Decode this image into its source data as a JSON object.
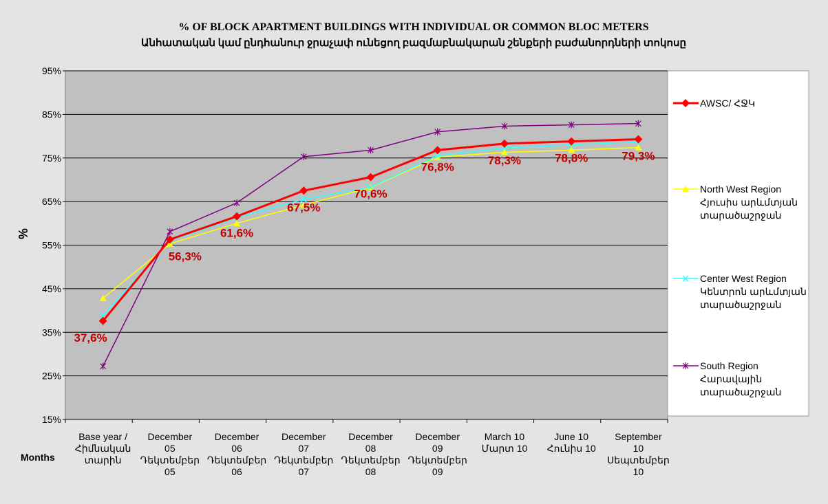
{
  "chart_data": {
    "type": "line",
    "title": "% OF BLOCK APARTMENT BUILDINGS WITH INDIVIDUAL OR COMMON BLOC METERS",
    "subtitle": "Անհատական կամ ընդհանուր ջրաչափ ունեցող բազմաբնակարան շենքերի բաժանորդների տոկոսը",
    "xlabel": "Months",
    "ylabel": "%",
    "categories": [
      "Base year /\nՀիմնական\nտարին",
      "December\n05\nԴեկտեմբեր\n05",
      "December\n06\nԴեկտեմբեր\n06",
      "December\n07\nԴեկտեմբեր\n07",
      "December\n08\nԴեկտեմբեր\n08",
      "December\n09\nԴեկտեմբեր\n09",
      "March 10\nՄարտ 10",
      "June 10\nՀունիս 10",
      "September\n10\nՍեպտեմբեր\n10"
    ],
    "ylim": [
      15,
      95
    ],
    "yticks": [
      {
        "value": 15,
        "label": "15%"
      },
      {
        "value": 25,
        "label": "25%"
      },
      {
        "value": 35,
        "label": "35%"
      },
      {
        "value": 45,
        "label": "45%"
      },
      {
        "value": 55,
        "label": "55%"
      },
      {
        "value": 65,
        "label": "65%"
      },
      {
        "value": 75,
        "label": "75%"
      },
      {
        "value": 85,
        "label": "85%"
      },
      {
        "value": 95,
        "label": "95%"
      }
    ],
    "grid": true,
    "legend": "right",
    "series": [
      {
        "name": "AWSC/ ՀՋԿ",
        "color": "#ff0000",
        "marker": "diamond",
        "values": [
          37.6,
          56.3,
          61.6,
          67.5,
          70.6,
          76.8,
          78.3,
          78.8,
          79.3
        ],
        "value_labels": [
          "37,6%",
          "56,3%",
          "61,6%",
          "67,5%",
          "70,6%",
          "76,8%",
          "78,3%",
          "78,8%",
          "79,3%"
        ]
      },
      {
        "name": "North West Region\nՀյուսիս արևմտյան\nտարածաշրջան",
        "color": "#ffff00",
        "marker": "triangle",
        "values": [
          42.8,
          55.3,
          60.0,
          64.2,
          68.2,
          75.2,
          76.3,
          76.8,
          77.4
        ]
      },
      {
        "name": "Center West Region\nԿենտրոն արևմտյան\nտարածաշրջան",
        "color": "#33ffff",
        "marker": "x",
        "values": [
          38.8,
          56.0,
          61.3,
          65.5,
          68.3,
          75.5,
          77.3,
          78.0,
          78.7
        ]
      },
      {
        "name": "South Region\nՀարավային\nտարածաշրջան",
        "color": "#800080",
        "marker": "star",
        "values": [
          27.2,
          58.1,
          64.7,
          75.3,
          76.8,
          81.0,
          82.3,
          82.6,
          82.9
        ]
      }
    ]
  }
}
